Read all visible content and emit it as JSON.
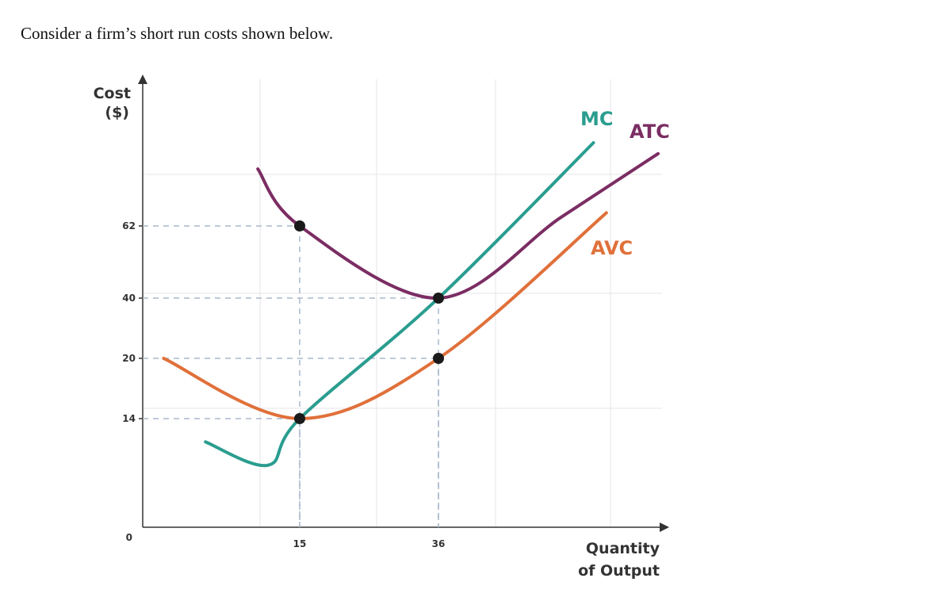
{
  "question": "Consider a firm’s short run costs shown below.",
  "chart_data": {
    "type": "line",
    "title": "",
    "ylabel_lines": [
      "Cost",
      "($)"
    ],
    "xlabel_lines": [
      "Quantity",
      "of Output"
    ],
    "origin_label": "0",
    "y_ticks": [
      62,
      40,
      20,
      14
    ],
    "x_ticks": [
      15,
      36
    ],
    "grid": true,
    "colors": {
      "MC": "#2a9d8f",
      "ATC": "#7b2d63",
      "AVC": "#e0703a",
      "dashed": "#a8b8cc",
      "point": "#1a1a1a"
    },
    "series": [
      {
        "name": "MC",
        "points": [
          [
            6,
            11
          ],
          [
            12,
            8
          ],
          [
            15,
            14
          ],
          [
            36,
            40
          ],
          [
            60,
            100
          ]
        ]
      },
      {
        "name": "ATC",
        "points": [
          [
            11,
            88
          ],
          [
            15,
            62
          ],
          [
            36,
            40
          ],
          [
            55,
            66
          ],
          [
            70,
            95
          ]
        ]
      },
      {
        "name": "AVC",
        "points": [
          [
            2,
            20
          ],
          [
            15,
            14
          ],
          [
            36,
            20
          ],
          [
            62,
            68
          ]
        ]
      }
    ],
    "marked_points": [
      {
        "x": 15,
        "y": 62
      },
      {
        "x": 36,
        "y": 40
      },
      {
        "x": 36,
        "y": 20
      },
      {
        "x": 15,
        "y": 14
      }
    ]
  }
}
